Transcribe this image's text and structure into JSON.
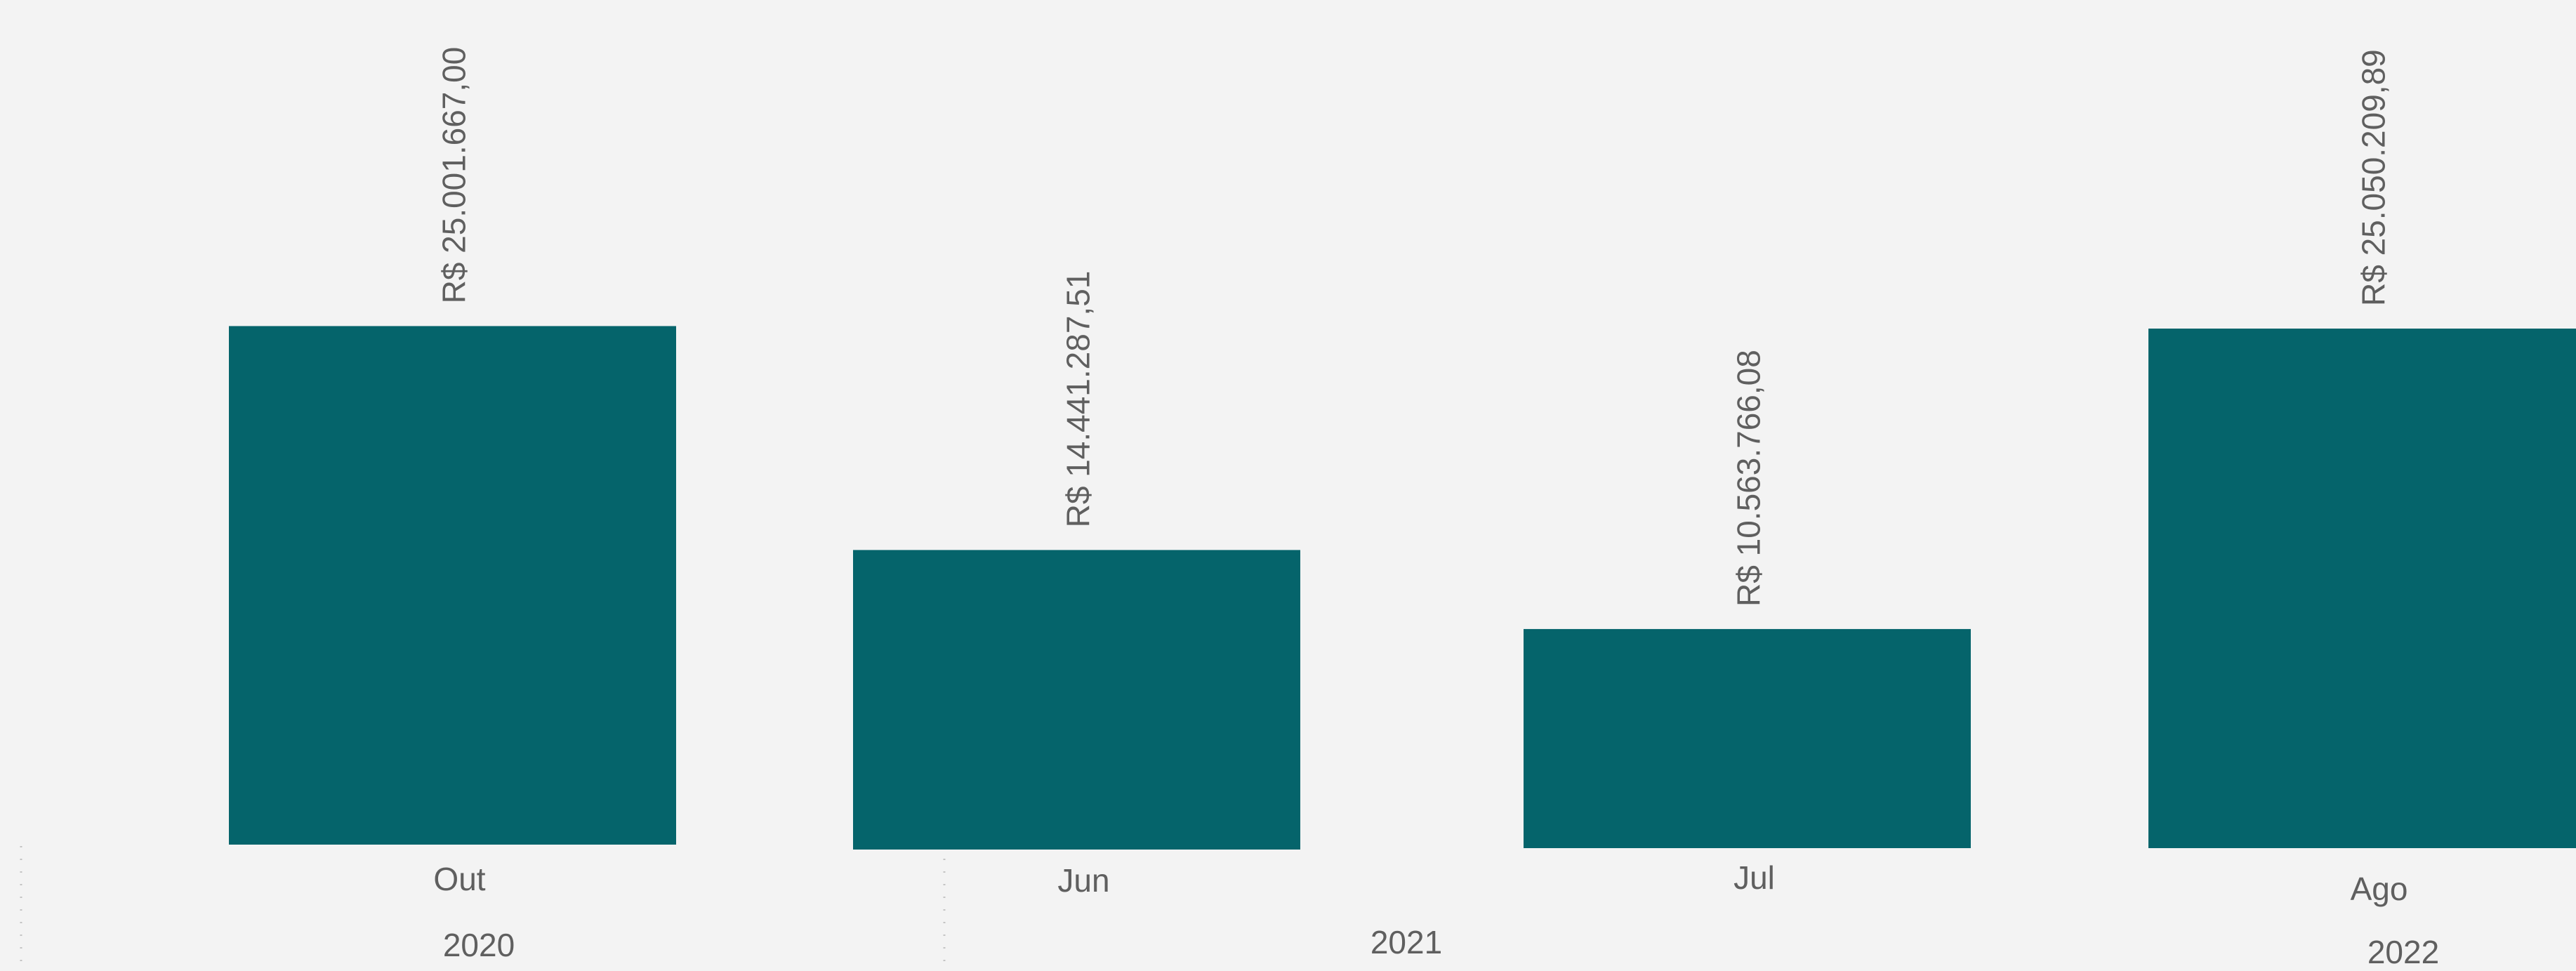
{
  "chart_data": {
    "type": "bar",
    "categories": [
      "Out",
      "Jun",
      "Jul",
      "Ago"
    ],
    "years": [
      "2020",
      "2021",
      "2021",
      "2022"
    ],
    "year_groups": [
      "2020",
      "2021",
      "2022"
    ],
    "values": [
      25001667.0,
      14441287.51,
      10563766.08,
      25050209.89
    ],
    "data_labels": [
      "R$ 25.001.667,00",
      "R$ 14.441.287,51",
      "R$ 10.563.766,08",
      "R$ 25.050.209,89"
    ],
    "title": "",
    "xlabel": "",
    "ylabel": "",
    "ylim": [
      0,
      25100000
    ],
    "grid": false,
    "legend": "none"
  },
  "colors": {
    "background": "#f3f3f3",
    "bar": "#05646b",
    "label_text": "#5f5f5f",
    "separator": "#c4c4c4"
  }
}
